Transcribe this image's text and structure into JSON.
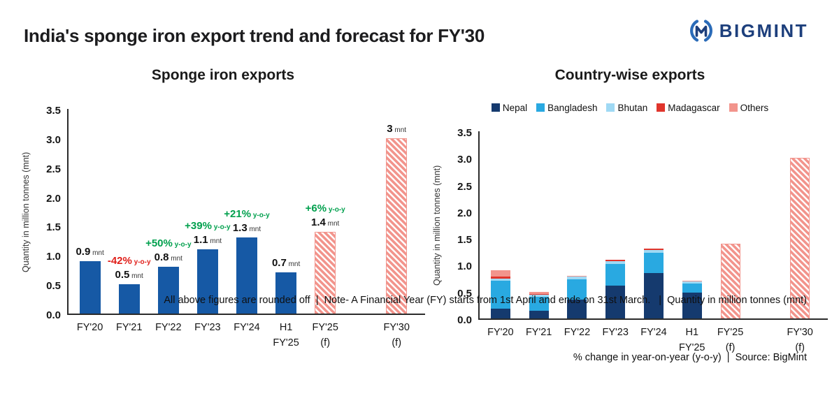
{
  "page": {
    "title": "India's sponge iron export trend and forecast for FY'30",
    "brand": "BIGMINT"
  },
  "colors": {
    "bar_blue": "#1659a5",
    "forecast_salmon": "#f2948c",
    "positive": "#00a04d",
    "negative": "#e0201b",
    "brand_navy": "#1d3f7c"
  },
  "footnotes": {
    "line1": "All above figures are rounded off  |  Note- A Financial Year (FY) starts from 1st April and ends on 31st March.   |  Quantity in million tonnes (mnt)",
    "line2": "% change in year-on-year (y-o-y)  |  Source: BigMint"
  },
  "chart_data": [
    {
      "type": "bar",
      "title": "Sponge iron exports",
      "ylabel": "Quantity in million tonnes (mnt)",
      "ylim": [
        0,
        3.5
      ],
      "yticks": [
        0,
        0.5,
        1,
        1.5,
        2,
        2.5,
        3,
        3.5
      ],
      "grid": false,
      "categories": [
        [
          "FY'20"
        ],
        [
          "FY'21"
        ],
        [
          "FY'22"
        ],
        [
          "FY'23"
        ],
        [
          "FY'24"
        ],
        [
          "H1",
          "FY'25"
        ],
        [
          "FY'25",
          "(f)"
        ],
        [
          "FY'30",
          "(f)"
        ]
      ],
      "values": [
        0.9,
        0.5,
        0.8,
        1.1,
        1.3,
        0.7,
        1.4,
        3
      ],
      "value_labels": [
        "0.9",
        "0.5",
        "0.8",
        "1.1",
        "1.3",
        "0.7",
        "1.4",
        "3"
      ],
      "unit": "mnt",
      "pct_unit": "y-o-y",
      "pct_changes": [
        null,
        "-42%",
        "+50%",
        "+39%",
        "+21%",
        null,
        "+6%",
        null
      ],
      "forecast": [
        false,
        false,
        false,
        false,
        false,
        false,
        true,
        true
      ]
    },
    {
      "type": "stacked-bar",
      "title": "Country-wise exports",
      "ylabel": "Quantity in million tonnes (mnt)",
      "ylim": [
        0,
        3.5
      ],
      "yticks": [
        0,
        0.5,
        1,
        1.5,
        2,
        2.5,
        3,
        3.5
      ],
      "grid": false,
      "legend_position": "top",
      "categories": [
        [
          "FY'20"
        ],
        [
          "FY'21"
        ],
        [
          "FY'22"
        ],
        [
          "FY'23"
        ],
        [
          "FY'24"
        ],
        [
          "H1",
          "FY'25"
        ],
        [
          "FY'25",
          "(f)"
        ],
        [
          "FY'30",
          "(f)"
        ]
      ],
      "series": [
        {
          "name": "Nepal",
          "color": "#153a6e",
          "values": [
            0.18,
            0.15,
            0.35,
            0.62,
            0.85,
            0.48,
            0,
            0
          ]
        },
        {
          "name": "Bangladesh",
          "color": "#29a9e1",
          "values": [
            0.52,
            0.25,
            0.38,
            0.4,
            0.38,
            0.17,
            0,
            0
          ]
        },
        {
          "name": "Bhutan",
          "color": "#9fd9f4",
          "values": [
            0.05,
            0.04,
            0.06,
            0.05,
            0.05,
            0.04,
            0,
            0
          ]
        },
        {
          "name": "Madagascar",
          "color": "#e0352c",
          "values": [
            0.03,
            0.02,
            0.0,
            0.03,
            0.02,
            0.0,
            0,
            0
          ]
        },
        {
          "name": "Others",
          "color": "#f2948c",
          "values": [
            0.12,
            0.04,
            0.01,
            0.0,
            0.0,
            0.01,
            0,
            0
          ]
        }
      ],
      "forecast_totals": [
        null,
        null,
        null,
        null,
        null,
        null,
        1.4,
        3
      ]
    }
  ]
}
